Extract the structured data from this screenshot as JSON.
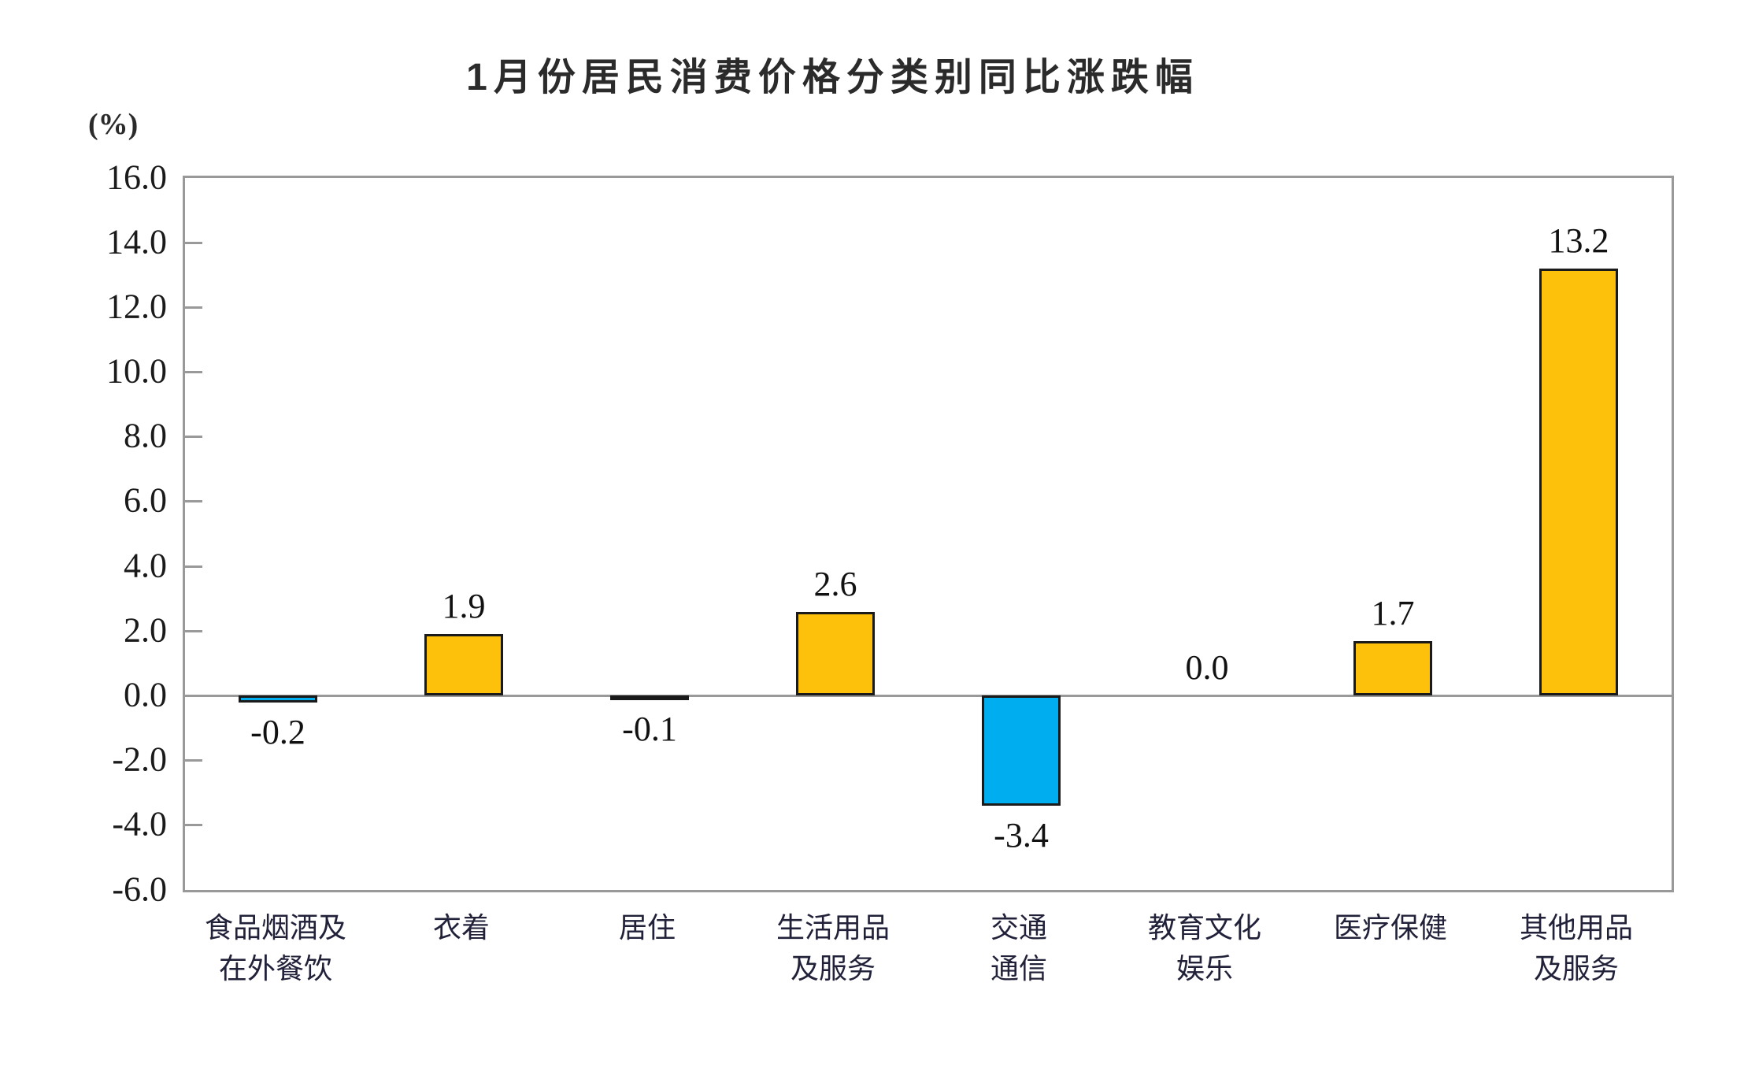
{
  "chart_data": {
    "type": "bar",
    "title": "1月份居民消费价格分类别同比涨跌幅",
    "unit_label": "(%)",
    "categories": [
      "食品烟酒及\n在外餐饮",
      "衣着",
      "居住",
      "生活用品\n及服务",
      "交通\n通信",
      "教育文化\n娱乐",
      "医疗保健",
      "其他用品\n及服务"
    ],
    "values": [
      -0.2,
      1.9,
      -0.1,
      2.6,
      -3.4,
      0.0,
      1.7,
      13.2
    ],
    "value_labels": [
      "-0.2",
      "1.9",
      "-0.1",
      "2.6",
      "-3.4",
      "0.0",
      "1.7",
      "13.2"
    ],
    "xlabel": "",
    "ylabel": "(%)",
    "ylim": [
      -6.0,
      16.0
    ],
    "ytick_step": 2.0,
    "ytick_labels": [
      "16.0",
      "14.0",
      "12.0",
      "10.0",
      "8.0",
      "6.0",
      "4.0",
      "2.0",
      "0.0",
      "-2.0",
      "-4.0",
      "-6.0"
    ],
    "grid": false,
    "legend_position": "none",
    "colors": {
      "positive_bar": "#FDC00B",
      "negative_bar": "#00AEEF",
      "bar_border": "#1A1A1A",
      "axis": "#999999",
      "text": "#1A1A1A"
    }
  }
}
